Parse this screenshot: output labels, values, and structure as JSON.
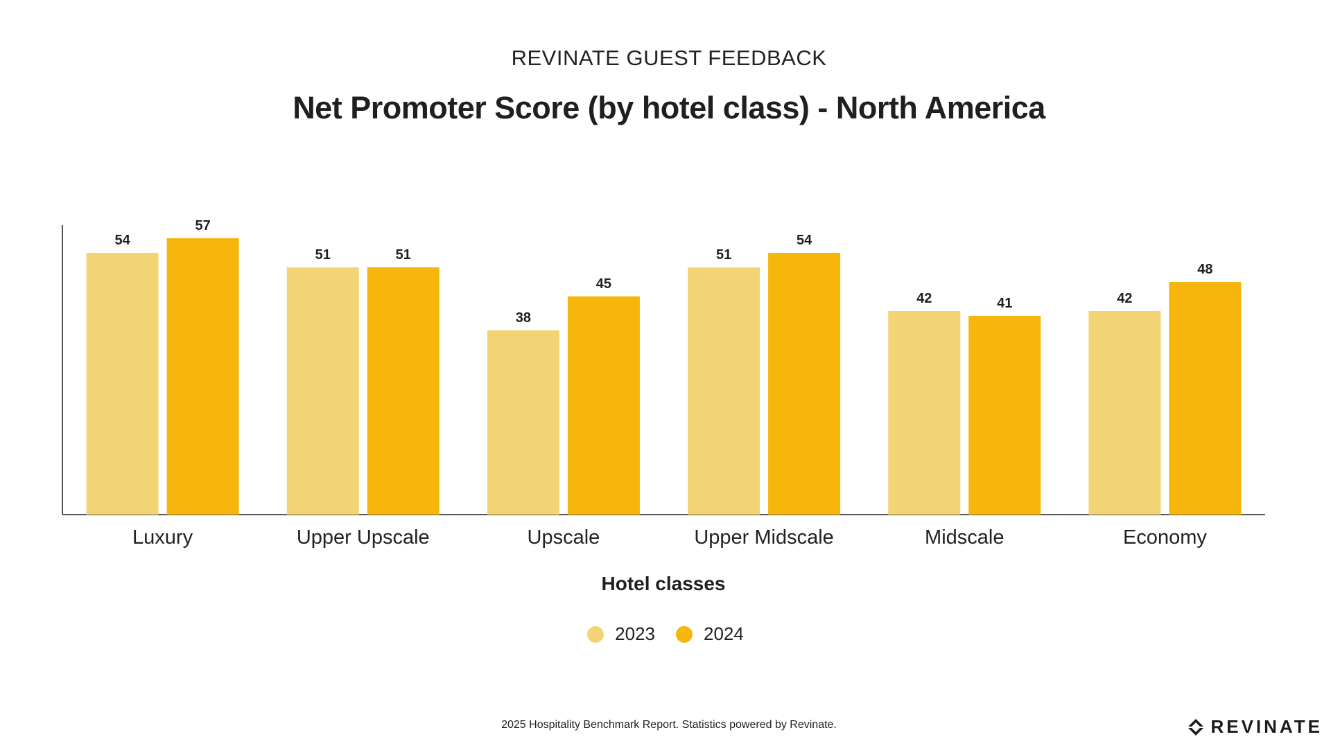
{
  "header": {
    "supertitle": "REVINATE GUEST FEEDBACK",
    "title": "Net Promoter Score (by hotel class) - North America"
  },
  "chart_data": {
    "type": "bar",
    "title": "Net Promoter Score (by hotel class) - North America",
    "xlabel": "Hotel classes",
    "ylabel": "",
    "ylim": [
      0,
      60
    ],
    "grid": false,
    "legend_position": "bottom-center",
    "categories": [
      "Luxury",
      "Upper Upscale",
      "Upscale",
      "Upper Midscale",
      "Midscale",
      "Economy"
    ],
    "series": [
      {
        "name": "2023",
        "color": "#F3D475",
        "values": [
          54,
          51,
          38,
          51,
          42,
          42
        ]
      },
      {
        "name": "2024",
        "color": "#F6B60B",
        "values": [
          57,
          51,
          45,
          54,
          41,
          48
        ]
      }
    ]
  },
  "footer": {
    "source": "2025 Hospitality Benchmark Report. Statistics powered by Revinate."
  },
  "brand": {
    "logo_text": "REVINATE",
    "logo_icon": "revinate-logo-icon"
  }
}
